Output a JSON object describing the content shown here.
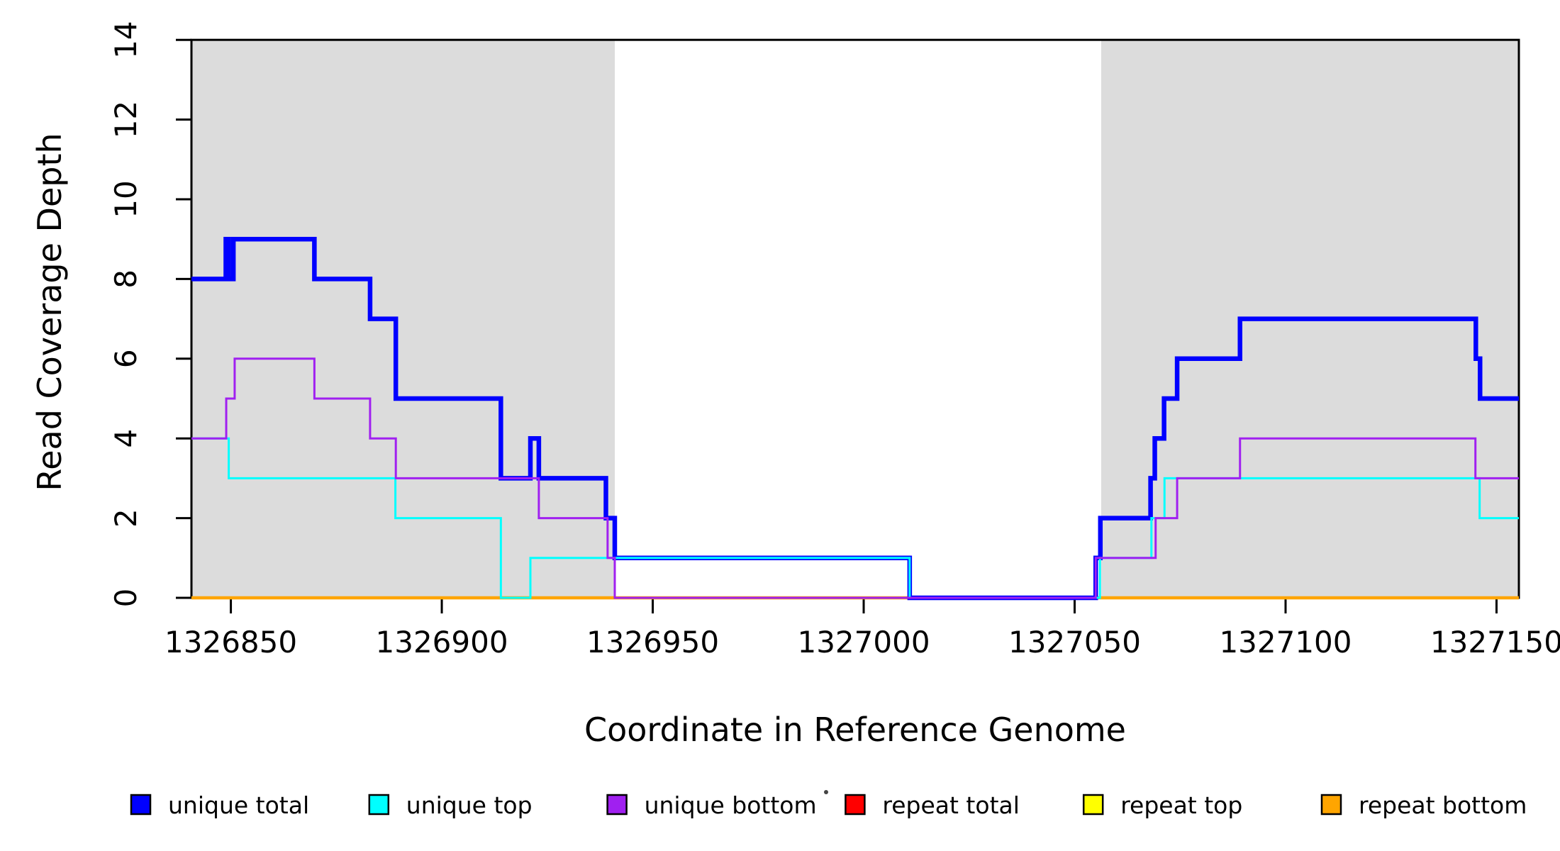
{
  "chart_data": {
    "type": "line",
    "step": true,
    "title": "",
    "xlabel": "Coordinate in Reference Genome",
    "ylabel": "Read Coverage Depth",
    "xlim": [
      1326840.66,
      1327155.3
    ],
    "ylim": [
      0,
      14
    ],
    "x_ticks": [
      1326850,
      1326900,
      1326950,
      1327000,
      1327050,
      1327100,
      1327150
    ],
    "y_ticks": [
      0,
      2,
      4,
      6,
      8,
      10,
      12,
      14
    ],
    "grid": false,
    "background_regions": [
      {
        "name": "left-shaded-region",
        "x0": 1326840.66,
        "x1": 1326941.0,
        "color": "#DCDCDC"
      },
      {
        "name": "right-shaded-region",
        "x0": 1327056.3,
        "x1": 1327155.3,
        "color": "#DCDCDC"
      }
    ],
    "draw_order": [
      "repeat top",
      "repeat total",
      "repeat bottom",
      "unique total",
      "unique top",
      "unique bottom"
    ],
    "series": [
      {
        "name": "unique total",
        "color": "#0000FF",
        "line_width": 6.5,
        "x_breaks": [
          1326840.66,
          1326848.8,
          1326849.5,
          1326850.6,
          1326869.8,
          1326883.0,
          1326889.1,
          1326914.0,
          1326921.0,
          1326923.0,
          1326938.9,
          1326941.0,
          1327010.9,
          1327055.0,
          1327056.1,
          1327068.0,
          1327069.0,
          1327071.2,
          1327074.3,
          1327089.2,
          1327145.1,
          1327146.1,
          1327155.3
        ],
        "values": [
          8,
          9,
          8,
          9,
          8,
          7,
          5,
          3,
          4,
          3,
          2,
          1,
          0,
          1,
          2,
          3,
          4,
          5,
          6,
          7,
          6,
          5
        ]
      },
      {
        "name": "unique top",
        "color": "#00FFFF",
        "line_width": 3,
        "x_breaks": [
          1326840.66,
          1326849.5,
          1326889.0,
          1326914.0,
          1326921.0,
          1327010.9,
          1327056.0,
          1327068.2,
          1327071.3,
          1327146.0,
          1327155.3
        ],
        "values": [
          4,
          3,
          2,
          0,
          1,
          0,
          1,
          2,
          3,
          2
        ]
      },
      {
        "name": "unique bottom",
        "color": "#A020F0",
        "line_width": 3,
        "x_breaks": [
          1326840.66,
          1326848.9,
          1326850.9,
          1326869.8,
          1326883.0,
          1326889.1,
          1326923.0,
          1326939.3,
          1326941.0,
          1327055.0,
          1327069.2,
          1327074.3,
          1327089.2,
          1327145.0,
          1327155.3
        ],
        "values": [
          4,
          5,
          6,
          5,
          4,
          3,
          2,
          1,
          0,
          1,
          2,
          3,
          4,
          3
        ]
      },
      {
        "name": "repeat total",
        "color": "#FF0000",
        "line_width": 4,
        "x_breaks": [
          1326840.66,
          1327155.3
        ],
        "values": [
          0
        ]
      },
      {
        "name": "repeat top",
        "color": "#FFFF00",
        "line_width": 3,
        "x_breaks": [
          1326840.66,
          1327155.3
        ],
        "values": [
          0
        ]
      },
      {
        "name": "repeat bottom",
        "color": "#FFA500",
        "line_width": 4.5,
        "x_breaks": [
          1326840.66,
          1327155.3
        ],
        "values": [
          0
        ]
      }
    ]
  },
  "legend": {
    "items": [
      {
        "label": "unique total",
        "color": "#0000FF"
      },
      {
        "label": "unique top",
        "color": "#00FFFF"
      },
      {
        "label": "unique bottom",
        "color": "#A020F0"
      },
      {
        "label": "repeat total",
        "color": "#FF0000"
      },
      {
        "label": "repeat top",
        "color": "#FFFF00"
      },
      {
        "label": "repeat bottom",
        "color": "#FFA500"
      }
    ]
  }
}
